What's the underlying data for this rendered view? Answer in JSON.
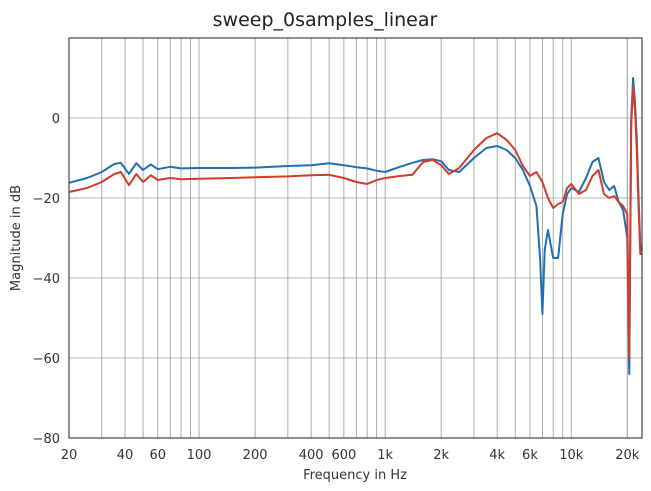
{
  "chart_data": {
    "type": "line",
    "title": "sweep_0samples_linear",
    "xlabel": "Frequency in Hz",
    "ylabel": "Magnitude in dB",
    "xscale": "log",
    "xlim": [
      20,
      24000
    ],
    "ylim": [
      -80,
      20
    ],
    "grid": true,
    "legend": "none",
    "x_ticks": [
      {
        "value": 20,
        "label": "20"
      },
      {
        "value": 40,
        "label": "40"
      },
      {
        "value": 60,
        "label": "60"
      },
      {
        "value": 100,
        "label": "100"
      },
      {
        "value": 200,
        "label": "200"
      },
      {
        "value": 400,
        "label": "400"
      },
      {
        "value": 600,
        "label": "600"
      },
      {
        "value": 1000,
        "label": "1k"
      },
      {
        "value": 2000,
        "label": "2k"
      },
      {
        "value": 4000,
        "label": "4k"
      },
      {
        "value": 6000,
        "label": "6k"
      },
      {
        "value": 10000,
        "label": "10k"
      },
      {
        "value": 20000,
        "label": "20k"
      }
    ],
    "y_ticks": [
      {
        "value": 0,
        "label": "0"
      },
      {
        "value": -20,
        "label": "−20"
      },
      {
        "value": -40,
        "label": "−40"
      },
      {
        "value": -60,
        "label": "−60"
      },
      {
        "value": -80,
        "label": "−80"
      }
    ],
    "series": [
      {
        "color": "#1f6fb4",
        "points": [
          [
            20,
            -16.2
          ],
          [
            25,
            -15
          ],
          [
            30,
            -13.5
          ],
          [
            35,
            -11.5
          ],
          [
            38,
            -11.2
          ],
          [
            42,
            -14
          ],
          [
            46,
            -11.3
          ],
          [
            50,
            -13
          ],
          [
            55,
            -11.6
          ],
          [
            60,
            -12.8
          ],
          [
            70,
            -12.2
          ],
          [
            80,
            -12.6
          ],
          [
            100,
            -12.5
          ],
          [
            150,
            -12.5
          ],
          [
            200,
            -12.4
          ],
          [
            300,
            -12
          ],
          [
            400,
            -11.8
          ],
          [
            500,
            -11.3
          ],
          [
            600,
            -11.8
          ],
          [
            700,
            -12.3
          ],
          [
            800,
            -12.6
          ],
          [
            900,
            -13.2
          ],
          [
            1000,
            -13.5
          ],
          [
            1200,
            -12.2
          ],
          [
            1400,
            -11.2
          ],
          [
            1600,
            -10.5
          ],
          [
            1800,
            -10.3
          ],
          [
            2000,
            -10.8
          ],
          [
            2200,
            -13
          ],
          [
            2500,
            -13.5
          ],
          [
            3000,
            -10
          ],
          [
            3500,
            -7.5
          ],
          [
            4000,
            -7
          ],
          [
            4500,
            -8
          ],
          [
            5000,
            -10
          ],
          [
            5500,
            -13
          ],
          [
            6000,
            -17
          ],
          [
            6500,
            -22
          ],
          [
            6800,
            -35
          ],
          [
            7000,
            -49
          ],
          [
            7200,
            -33
          ],
          [
            7500,
            -28
          ],
          [
            8000,
            -35
          ],
          [
            8500,
            -35
          ],
          [
            9000,
            -24
          ],
          [
            9500,
            -19
          ],
          [
            10000,
            -17.5
          ],
          [
            11000,
            -18.5
          ],
          [
            12000,
            -15
          ],
          [
            13000,
            -11
          ],
          [
            14000,
            -10
          ],
          [
            15000,
            -16
          ],
          [
            16000,
            -18
          ],
          [
            17000,
            -17
          ],
          [
            18000,
            -21
          ],
          [
            19000,
            -23
          ],
          [
            20000,
            -30
          ],
          [
            20500,
            -64
          ],
          [
            21000,
            0
          ],
          [
            21500,
            10
          ],
          [
            22000,
            4
          ],
          [
            22500,
            -5
          ],
          [
            23000,
            -20
          ],
          [
            23500,
            -32
          ],
          [
            24000,
            -33
          ]
        ]
      },
      {
        "color": "#d23c2a",
        "points": [
          [
            20,
            -18.5
          ],
          [
            25,
            -17.5
          ],
          [
            30,
            -16
          ],
          [
            35,
            -14
          ],
          [
            38,
            -13.5
          ],
          [
            42,
            -16.8
          ],
          [
            46,
            -14
          ],
          [
            50,
            -16
          ],
          [
            55,
            -14.3
          ],
          [
            60,
            -15.5
          ],
          [
            70,
            -15
          ],
          [
            80,
            -15.3
          ],
          [
            100,
            -15.2
          ],
          [
            150,
            -15
          ],
          [
            200,
            -14.8
          ],
          [
            300,
            -14.6
          ],
          [
            400,
            -14.3
          ],
          [
            500,
            -14.2
          ],
          [
            600,
            -15
          ],
          [
            700,
            -16
          ],
          [
            800,
            -16.5
          ],
          [
            900,
            -15.5
          ],
          [
            1000,
            -15
          ],
          [
            1200,
            -14.5
          ],
          [
            1400,
            -14.2
          ],
          [
            1600,
            -11
          ],
          [
            1800,
            -10.5
          ],
          [
            2000,
            -11.8
          ],
          [
            2200,
            -14
          ],
          [
            2500,
            -12.5
          ],
          [
            3000,
            -8
          ],
          [
            3500,
            -5
          ],
          [
            4000,
            -3.8
          ],
          [
            4500,
            -5.5
          ],
          [
            5000,
            -8
          ],
          [
            5500,
            -12
          ],
          [
            6000,
            -14.5
          ],
          [
            6500,
            -13.5
          ],
          [
            7000,
            -16
          ],
          [
            7500,
            -20
          ],
          [
            8000,
            -22.5
          ],
          [
            8500,
            -21.5
          ],
          [
            9000,
            -21
          ],
          [
            9500,
            -17.5
          ],
          [
            10000,
            -16.5
          ],
          [
            11000,
            -19
          ],
          [
            12000,
            -18
          ],
          [
            13000,
            -14.5
          ],
          [
            14000,
            -13
          ],
          [
            15000,
            -19
          ],
          [
            16000,
            -20
          ],
          [
            17000,
            -19.5
          ],
          [
            18000,
            -21
          ],
          [
            19000,
            -22
          ],
          [
            20000,
            -24
          ],
          [
            20500,
            -60
          ],
          [
            21000,
            -2
          ],
          [
            21500,
            8
          ],
          [
            22000,
            2
          ],
          [
            22500,
            -8
          ],
          [
            23000,
            -22
          ],
          [
            23500,
            -34
          ],
          [
            24000,
            -34
          ]
        ]
      }
    ]
  }
}
